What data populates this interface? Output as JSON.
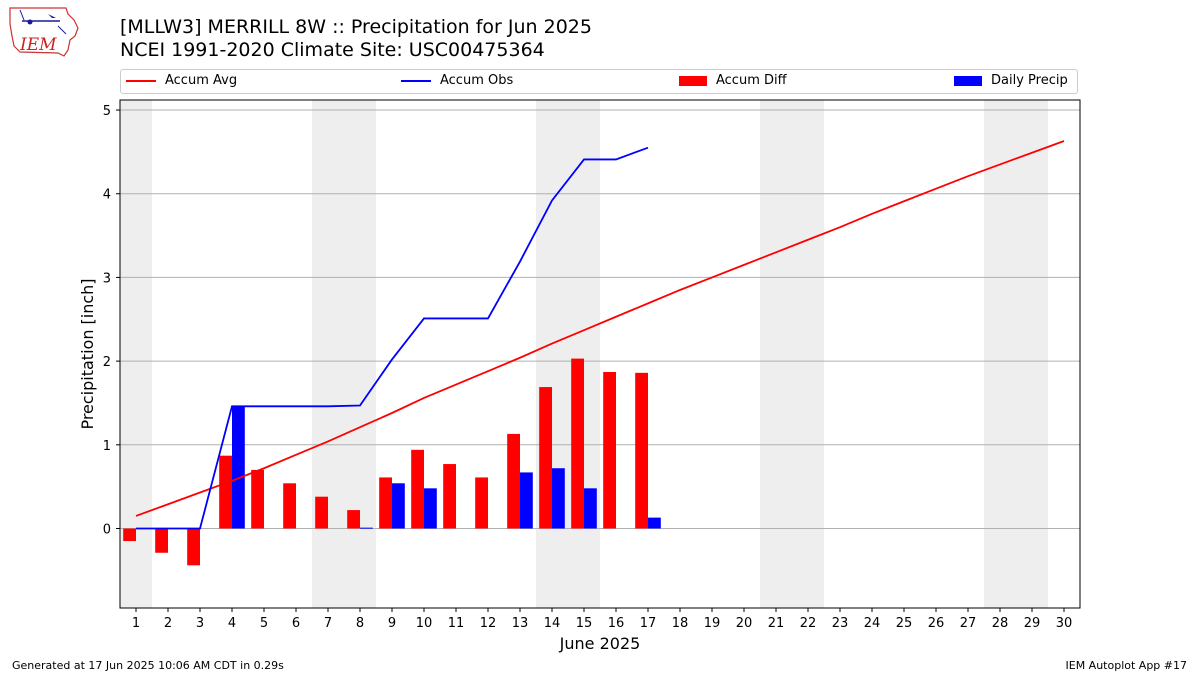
{
  "header": {
    "title_line1": "[MLLW3] MERRILL 8W :: Precipitation for Jun 2025",
    "title_line2": "NCEI 1991-2020 Climate Site: USC00475364"
  },
  "logo": {
    "text": "IEM"
  },
  "legend": [
    {
      "label": "Accum Avg",
      "kind": "line",
      "color": "#ff0000"
    },
    {
      "label": "Accum Obs",
      "kind": "line",
      "color": "#0000ff"
    },
    {
      "label": "Accum Diff",
      "kind": "bar",
      "color": "#ff0000"
    },
    {
      "label": "Daily Precip",
      "kind": "bar",
      "color": "#0000ff"
    }
  ],
  "footer": {
    "left": "Generated at 17 Jun 2025 10:06 AM CDT in 0.29s",
    "right": "IEM Autoplot App #17"
  },
  "chart_data": {
    "type": "bar",
    "title": "[MLLW3] MERRILL 8W :: Precipitation for Jun 2025",
    "xlabel": "June 2025",
    "ylabel": "Precipitation [inch]",
    "xlim": [
      0.5,
      30.5
    ],
    "ylim": [
      -0.95,
      5.12
    ],
    "yticks": [
      0,
      1,
      2,
      3,
      4,
      5
    ],
    "xticks": [
      1,
      2,
      3,
      4,
      5,
      6,
      7,
      8,
      9,
      10,
      11,
      12,
      13,
      14,
      15,
      16,
      17,
      18,
      19,
      20,
      21,
      22,
      23,
      24,
      25,
      26,
      27,
      28,
      29,
      30
    ],
    "grid": "horizontal",
    "weekend_shading": [
      [
        0.5,
        1.5
      ],
      [
        6.5,
        8.5
      ],
      [
        13.5,
        15.5
      ],
      [
        20.5,
        22.5
      ],
      [
        27.5,
        29.5
      ]
    ],
    "days": [
      1,
      2,
      3,
      4,
      5,
      6,
      7,
      8,
      9,
      10,
      11,
      12,
      13,
      14,
      15,
      16,
      17,
      18,
      19,
      20,
      21,
      22,
      23,
      24,
      25,
      26,
      27,
      28,
      29,
      30
    ],
    "series": [
      {
        "name": "Accum Avg",
        "type": "line",
        "color": "#ff0000",
        "values": [
          0.15,
          0.29,
          0.43,
          0.57,
          0.72,
          0.88,
          1.04,
          1.21,
          1.38,
          1.56,
          1.72,
          1.88,
          2.04,
          2.21,
          2.37,
          2.53,
          2.69,
          2.85,
          3.0,
          3.15,
          3.3,
          3.45,
          3.6,
          3.76,
          3.91,
          4.06,
          4.21,
          4.35,
          4.49,
          4.63
        ]
      },
      {
        "name": "Accum Obs",
        "type": "line",
        "color": "#0000ff",
        "values": [
          0.0,
          0.0,
          0.0,
          1.46,
          1.46,
          1.46,
          1.46,
          1.47,
          2.02,
          2.51,
          2.51,
          2.51,
          3.19,
          3.92,
          4.41,
          4.41,
          4.55
        ]
      },
      {
        "name": "Accum Diff",
        "type": "bar",
        "color": "#ff0000",
        "values": [
          -0.15,
          -0.29,
          -0.44,
          0.87,
          0.7,
          0.54,
          0.38,
          0.22,
          0.61,
          0.94,
          0.77,
          0.61,
          1.13,
          1.69,
          2.03,
          1.87,
          1.86
        ]
      },
      {
        "name": "Daily Precip",
        "type": "bar",
        "color": "#0000ff",
        "values": [
          0.0,
          0.0,
          0.0,
          1.46,
          0.0,
          0.0,
          0.0,
          0.01,
          0.54,
          0.48,
          0.0,
          0.0,
          0.67,
          0.72,
          0.48,
          0.0,
          0.13
        ]
      }
    ]
  }
}
